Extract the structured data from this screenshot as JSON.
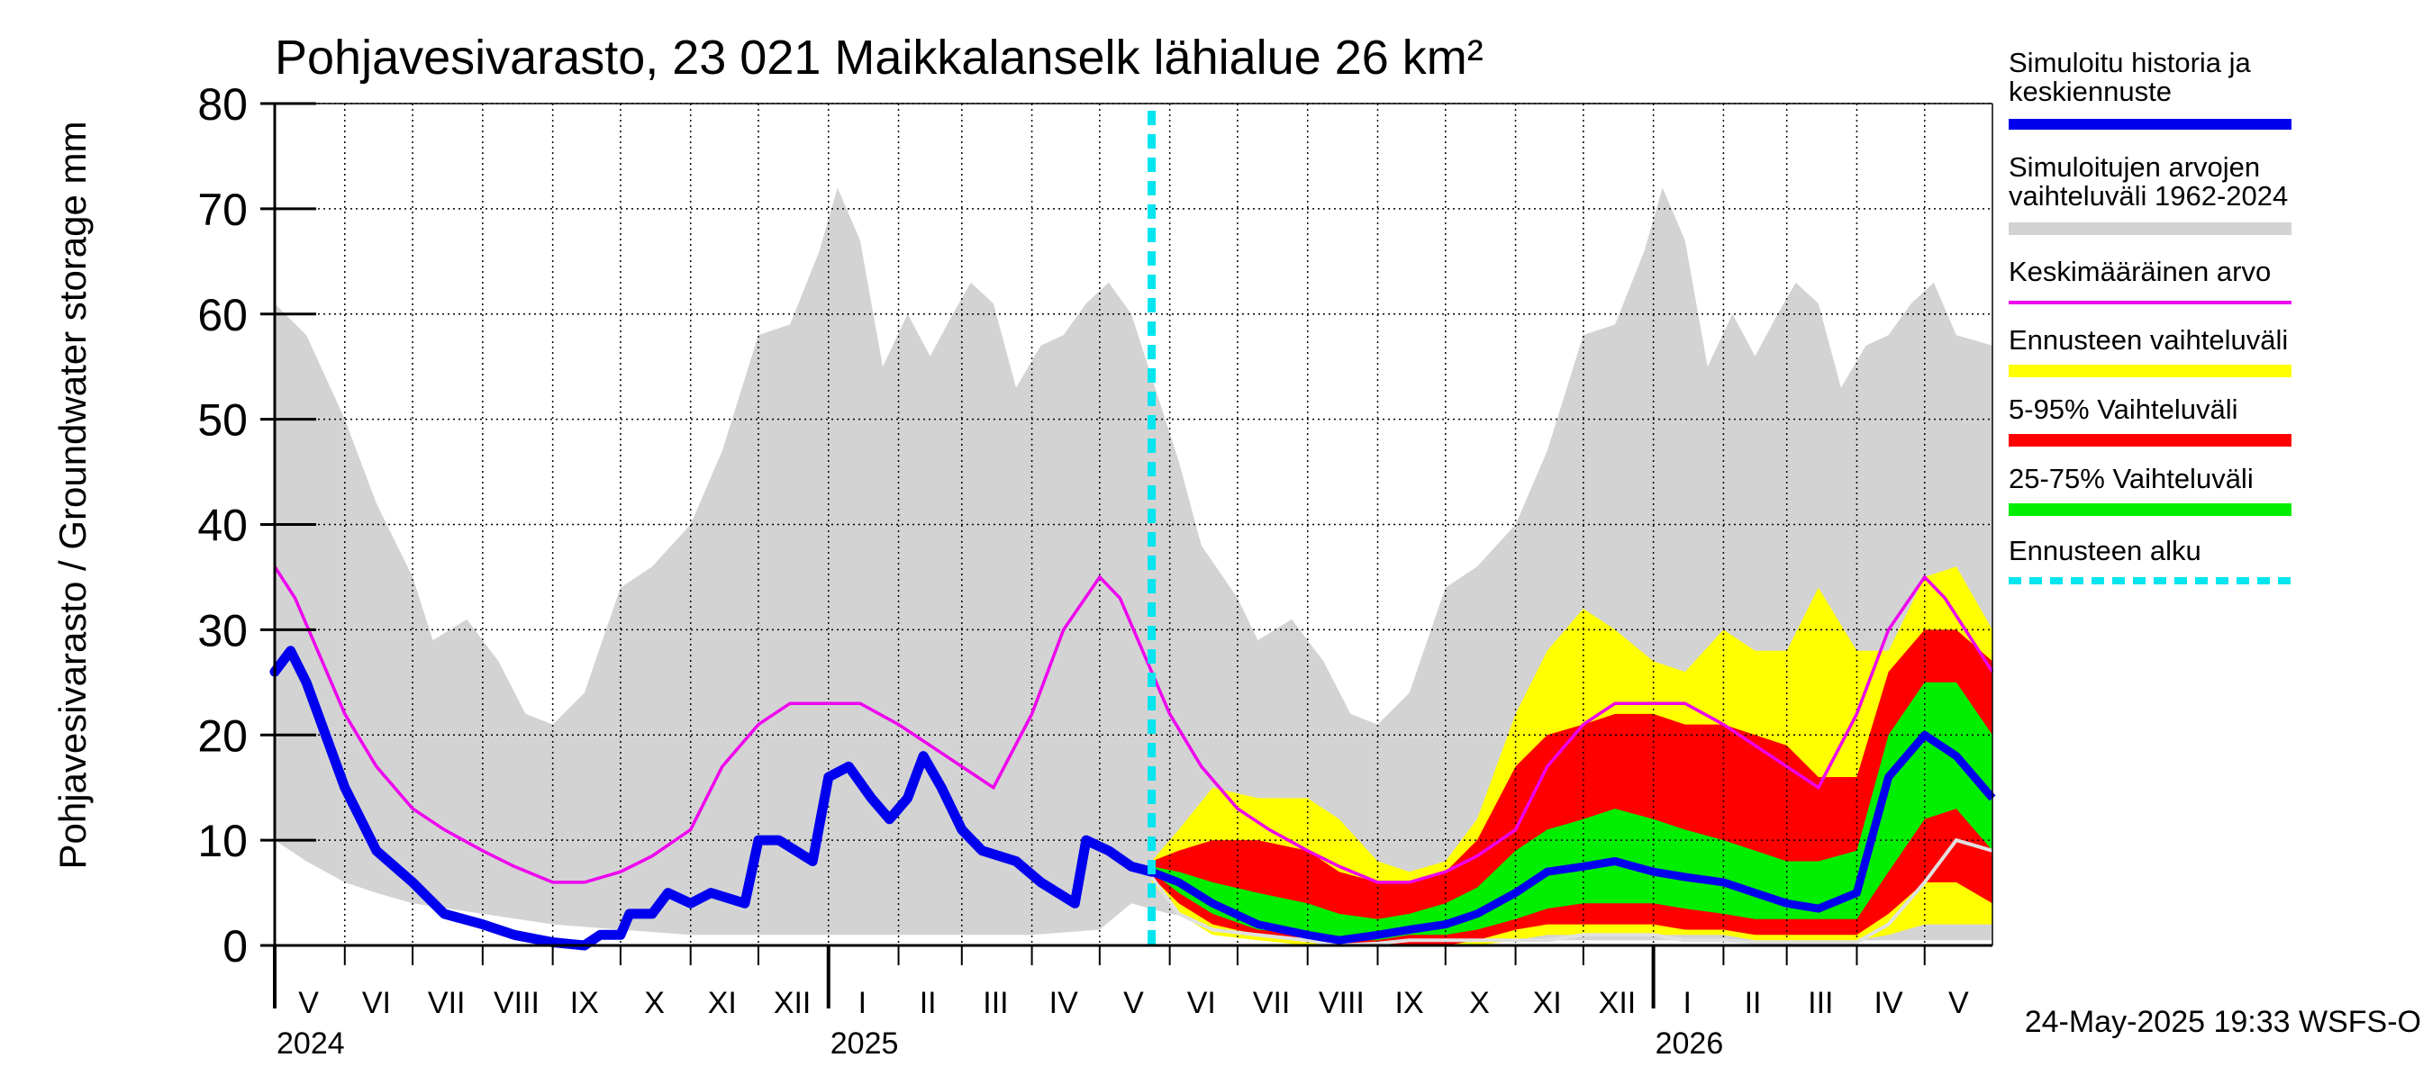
{
  "title": "Pohjavesivarasto, 23 021 Maikkalanselk lähialue 26 km²",
  "ylabel": "Pohjavesivarasto / Groundwater storage   mm",
  "footer": "24-May-2025 19:33 WSFS-O",
  "chart_data": {
    "type": "area",
    "x_unit": "date",
    "x_range": [
      "2024-05-01",
      "2026-05-31"
    ],
    "ylim": [
      0,
      80
    ],
    "y_ticks": [
      0,
      10,
      20,
      30,
      40,
      50,
      60,
      70,
      80
    ],
    "grid": true,
    "legend_position": "right",
    "month_labels": [
      {
        "label": "V",
        "date": "2024-05-16"
      },
      {
        "label": "VI",
        "date": "2024-06-15"
      },
      {
        "label": "VII",
        "date": "2024-07-16"
      },
      {
        "label": "VIII",
        "date": "2024-08-16"
      },
      {
        "label": "IX",
        "date": "2024-09-15"
      },
      {
        "label": "X",
        "date": "2024-10-16"
      },
      {
        "label": "XI",
        "date": "2024-11-15"
      },
      {
        "label": "XII",
        "date": "2024-12-16"
      },
      {
        "label": "I",
        "date": "2025-01-16"
      },
      {
        "label": "II",
        "date": "2025-02-14"
      },
      {
        "label": "III",
        "date": "2025-03-16"
      },
      {
        "label": "IV",
        "date": "2025-04-15"
      },
      {
        "label": "V",
        "date": "2025-05-16"
      },
      {
        "label": "VI",
        "date": "2025-06-15"
      },
      {
        "label": "VII",
        "date": "2025-07-16"
      },
      {
        "label": "VIII",
        "date": "2025-08-16"
      },
      {
        "label": "IX",
        "date": "2025-09-15"
      },
      {
        "label": "X",
        "date": "2025-10-16"
      },
      {
        "label": "XI",
        "date": "2025-11-15"
      },
      {
        "label": "XII",
        "date": "2025-12-16"
      },
      {
        "label": "I",
        "date": "2026-01-16"
      },
      {
        "label": "II",
        "date": "2026-02-14"
      },
      {
        "label": "III",
        "date": "2026-03-16"
      },
      {
        "label": "IV",
        "date": "2026-04-15"
      },
      {
        "label": "V",
        "date": "2026-05-16"
      }
    ],
    "month_boundaries": [
      "2024-05-01",
      "2024-06-01",
      "2024-07-01",
      "2024-08-01",
      "2024-09-01",
      "2024-10-01",
      "2024-11-01",
      "2024-12-01",
      "2025-01-01",
      "2025-02-01",
      "2025-03-01",
      "2025-04-01",
      "2025-05-01",
      "2025-06-01",
      "2025-07-01",
      "2025-08-01",
      "2025-09-01",
      "2025-10-01",
      "2025-11-01",
      "2025-12-01",
      "2026-01-01",
      "2026-02-01",
      "2026-03-01",
      "2026-04-01",
      "2026-05-01"
    ],
    "year_labels": [
      {
        "label": "2024",
        "date": "2024-05-01"
      },
      {
        "label": "2025",
        "date": "2025-01-01"
      },
      {
        "label": "2026",
        "date": "2026-01-01"
      }
    ],
    "forecast_start": "2025-05-24",
    "legend": [
      {
        "key": "history",
        "label_lines": [
          "Simuloitu historia ja",
          "keskiennuste"
        ],
        "color": "#0000ee",
        "style": "line"
      },
      {
        "key": "range",
        "label_lines": [
          "Simuloitujen arvojen",
          "vaihteluväli 1962-2024"
        ],
        "color": "#d3d3d3",
        "style": "band"
      },
      {
        "key": "mean",
        "label_lines": [
          "Keskimääräinen arvo"
        ],
        "color": "#ee00ee",
        "style": "thin"
      },
      {
        "key": "forecast_range",
        "label_lines": [
          "Ennusteen vaihteluväli"
        ],
        "color": "#ffff00",
        "style": "band"
      },
      {
        "key": "p5_95",
        "label_lines": [
          "5-95% Vaihteluväli"
        ],
        "color": "#ff0000",
        "style": "band"
      },
      {
        "key": "p25_75",
        "label_lines": [
          "25-75% Vaihteluväli"
        ],
        "color": "#00ee00",
        "style": "band"
      },
      {
        "key": "forecast_start",
        "label_lines": [
          "Ennusteen alku"
        ],
        "color": "#00e5ee",
        "style": "dashed"
      }
    ],
    "series": {
      "range_upper": [
        [
          "2024-05-01",
          61
        ],
        [
          "2024-05-15",
          58
        ],
        [
          "2024-06-01",
          50
        ],
        [
          "2024-06-15",
          42
        ],
        [
          "2024-07-01",
          35
        ],
        [
          "2024-07-10",
          29
        ],
        [
          "2024-07-25",
          31
        ],
        [
          "2024-08-08",
          27
        ],
        [
          "2024-08-20",
          22
        ],
        [
          "2024-09-01",
          21
        ],
        [
          "2024-09-15",
          24
        ],
        [
          "2024-10-01",
          34
        ],
        [
          "2024-10-15",
          36
        ],
        [
          "2024-11-01",
          40
        ],
        [
          "2024-11-15",
          47
        ],
        [
          "2024-12-01",
          58
        ],
        [
          "2024-12-15",
          59
        ],
        [
          "2024-12-28",
          66
        ],
        [
          "2025-01-05",
          72
        ],
        [
          "2025-01-15",
          67
        ],
        [
          "2025-01-25",
          55
        ],
        [
          "2025-02-05",
          60
        ],
        [
          "2025-02-15",
          56
        ],
        [
          "2025-02-25",
          60
        ],
        [
          "2025-03-05",
          63
        ],
        [
          "2025-03-15",
          61
        ],
        [
          "2025-03-25",
          53
        ],
        [
          "2025-04-05",
          57
        ],
        [
          "2025-04-15",
          58
        ],
        [
          "2025-04-25",
          61
        ],
        [
          "2025-05-05",
          63
        ],
        [
          "2025-05-15",
          60
        ],
        [
          "2025-05-24",
          54
        ],
        [
          "2025-06-05",
          46
        ],
        [
          "2025-06-15",
          38
        ],
        [
          "2025-07-01",
          33
        ],
        [
          "2025-07-10",
          29
        ],
        [
          "2025-07-25",
          31
        ],
        [
          "2025-08-08",
          27
        ],
        [
          "2025-08-20",
          22
        ],
        [
          "2025-09-01",
          21
        ],
        [
          "2025-09-15",
          24
        ],
        [
          "2025-10-01",
          34
        ],
        [
          "2025-10-15",
          36
        ],
        [
          "2025-11-01",
          40
        ],
        [
          "2025-11-15",
          47
        ],
        [
          "2025-12-01",
          58
        ],
        [
          "2025-12-15",
          59
        ],
        [
          "2025-12-28",
          66
        ],
        [
          "2026-01-05",
          72
        ],
        [
          "2026-01-15",
          67
        ],
        [
          "2026-01-25",
          55
        ],
        [
          "2026-02-05",
          60
        ],
        [
          "2026-02-15",
          56
        ],
        [
          "2026-02-25",
          60
        ],
        [
          "2026-03-05",
          63
        ],
        [
          "2026-03-15",
          61
        ],
        [
          "2026-03-25",
          53
        ],
        [
          "2026-04-05",
          57
        ],
        [
          "2026-04-15",
          58
        ],
        [
          "2026-04-25",
          61
        ],
        [
          "2026-05-05",
          63
        ],
        [
          "2026-05-15",
          58
        ],
        [
          "2026-05-31",
          57
        ]
      ],
      "range_lower": [
        [
          "2024-05-01",
          10
        ],
        [
          "2024-05-15",
          8
        ],
        [
          "2024-06-01",
          6
        ],
        [
          "2024-06-15",
          5
        ],
        [
          "2024-07-01",
          4
        ],
        [
          "2024-08-01",
          3
        ],
        [
          "2024-09-01",
          2
        ],
        [
          "2024-10-01",
          1.5
        ],
        [
          "2024-11-01",
          1
        ],
        [
          "2024-12-01",
          1
        ],
        [
          "2025-01-01",
          1
        ],
        [
          "2025-02-01",
          1
        ],
        [
          "2025-03-01",
          1
        ],
        [
          "2025-04-01",
          1
        ],
        [
          "2025-05-01",
          1.5
        ],
        [
          "2025-05-15",
          4
        ],
        [
          "2025-06-01",
          3
        ],
        [
          "2025-07-01",
          2
        ],
        [
          "2025-08-01",
          1.5
        ],
        [
          "2025-09-01",
          1
        ],
        [
          "2025-10-01",
          0.5
        ],
        [
          "2025-11-01",
          0.5
        ],
        [
          "2025-12-01",
          0.5
        ],
        [
          "2026-01-01",
          0.5
        ],
        [
          "2026-02-01",
          0.5
        ],
        [
          "2026-03-01",
          0.5
        ],
        [
          "2026-04-01",
          0.5
        ],
        [
          "2026-05-01",
          0.5
        ],
        [
          "2026-05-31",
          0.5
        ]
      ],
      "mean": [
        [
          "2024-05-01",
          36
        ],
        [
          "2024-05-10",
          33
        ],
        [
          "2024-06-01",
          22
        ],
        [
          "2024-06-15",
          17
        ],
        [
          "2024-07-01",
          13
        ],
        [
          "2024-07-15",
          11
        ],
        [
          "2024-08-01",
          9
        ],
        [
          "2024-08-15",
          7.5
        ],
        [
          "2024-09-01",
          6
        ],
        [
          "2024-09-15",
          6
        ],
        [
          "2024-10-01",
          7
        ],
        [
          "2024-10-15",
          8.5
        ],
        [
          "2024-11-01",
          11
        ],
        [
          "2024-11-15",
          17
        ],
        [
          "2024-12-01",
          21
        ],
        [
          "2024-12-15",
          23
        ],
        [
          "2025-01-01",
          23
        ],
        [
          "2025-01-15",
          23
        ],
        [
          "2025-02-01",
          21
        ],
        [
          "2025-02-15",
          19
        ],
        [
          "2025-03-01",
          17
        ],
        [
          "2025-03-15",
          15
        ],
        [
          "2025-04-01",
          22
        ],
        [
          "2025-04-15",
          30
        ],
        [
          "2025-05-01",
          35
        ],
        [
          "2025-05-10",
          33
        ],
        [
          "2025-06-01",
          22
        ],
        [
          "2025-06-15",
          17
        ],
        [
          "2025-07-01",
          13
        ],
        [
          "2025-07-15",
          11
        ],
        [
          "2025-08-01",
          9
        ],
        [
          "2025-08-15",
          7.5
        ],
        [
          "2025-09-01",
          6
        ],
        [
          "2025-09-15",
          6
        ],
        [
          "2025-10-01",
          7
        ],
        [
          "2025-10-15",
          8.5
        ],
        [
          "2025-11-01",
          11
        ],
        [
          "2025-11-15",
          17
        ],
        [
          "2025-12-01",
          21
        ],
        [
          "2025-12-15",
          23
        ],
        [
          "2026-01-01",
          23
        ],
        [
          "2026-01-15",
          23
        ],
        [
          "2026-02-01",
          21
        ],
        [
          "2026-02-15",
          19
        ],
        [
          "2026-03-01",
          17
        ],
        [
          "2026-03-15",
          15
        ],
        [
          "2026-04-01",
          22
        ],
        [
          "2026-04-15",
          30
        ],
        [
          "2026-05-01",
          35
        ],
        [
          "2026-05-10",
          33
        ],
        [
          "2026-05-31",
          26
        ]
      ],
      "history": [
        [
          "2024-05-01",
          26
        ],
        [
          "2024-05-08",
          28
        ],
        [
          "2024-05-15",
          25
        ],
        [
          "2024-06-01",
          15
        ],
        [
          "2024-06-15",
          9
        ],
        [
          "2024-07-01",
          6
        ],
        [
          "2024-07-15",
          3
        ],
        [
          "2024-08-01",
          2
        ],
        [
          "2024-08-15",
          1
        ],
        [
          "2024-09-01",
          0.3
        ],
        [
          "2024-09-15",
          0
        ],
        [
          "2024-09-22",
          1
        ],
        [
          "2024-10-01",
          1
        ],
        [
          "2024-10-05",
          3
        ],
        [
          "2024-10-15",
          3
        ],
        [
          "2024-10-22",
          5
        ],
        [
          "2024-11-01",
          4
        ],
        [
          "2024-11-10",
          5
        ],
        [
          "2024-11-25",
          4
        ],
        [
          "2024-12-01",
          10
        ],
        [
          "2024-12-10",
          10
        ],
        [
          "2024-12-25",
          8
        ],
        [
          "2025-01-01",
          16
        ],
        [
          "2025-01-10",
          17
        ],
        [
          "2025-01-20",
          14
        ],
        [
          "2025-01-28",
          12
        ],
        [
          "2025-02-05",
          14
        ],
        [
          "2025-02-12",
          18
        ],
        [
          "2025-02-20",
          15
        ],
        [
          "2025-03-01",
          11
        ],
        [
          "2025-03-10",
          9
        ],
        [
          "2025-03-25",
          8
        ],
        [
          "2025-04-05",
          6
        ],
        [
          "2025-04-20",
          4
        ],
        [
          "2025-04-25",
          10
        ],
        [
          "2025-05-05",
          9
        ],
        [
          "2025-05-15",
          7.5
        ],
        [
          "2025-05-24",
          7
        ]
      ],
      "forecast_mean": [
        [
          "2025-05-24",
          7
        ],
        [
          "2025-06-05",
          6
        ],
        [
          "2025-06-20",
          4
        ],
        [
          "2025-07-10",
          2
        ],
        [
          "2025-08-01",
          1
        ],
        [
          "2025-08-15",
          0.5
        ],
        [
          "2025-09-01",
          1
        ],
        [
          "2025-09-15",
          1.5
        ],
        [
          "2025-10-01",
          2
        ],
        [
          "2025-10-15",
          3
        ],
        [
          "2025-11-01",
          5
        ],
        [
          "2025-11-15",
          7
        ],
        [
          "2025-12-01",
          7.5
        ],
        [
          "2025-12-15",
          8
        ],
        [
          "2026-01-01",
          7
        ],
        [
          "2026-01-15",
          6.5
        ],
        [
          "2026-02-01",
          6
        ],
        [
          "2026-02-15",
          5
        ],
        [
          "2026-03-01",
          4
        ],
        [
          "2026-03-15",
          3.5
        ],
        [
          "2026-04-01",
          5
        ],
        [
          "2026-04-15",
          16
        ],
        [
          "2026-05-01",
          20
        ],
        [
          "2026-05-15",
          18
        ],
        [
          "2026-05-31",
          14
        ]
      ],
      "forecast_band_x": [
        "2025-05-24",
        "2025-06-05",
        "2025-06-20",
        "2025-07-10",
        "2025-08-01",
        "2025-08-15",
        "2025-09-01",
        "2025-09-15",
        "2025-10-01",
        "2025-10-15",
        "2025-11-01",
        "2025-11-15",
        "2025-12-01",
        "2025-12-15",
        "2026-01-01",
        "2026-01-15",
        "2026-02-01",
        "2026-02-15",
        "2026-03-01",
        "2026-03-15",
        "2026-04-01",
        "2026-04-15",
        "2026-05-01",
        "2026-05-15",
        "2026-05-31"
      ],
      "forecast_max": [
        8,
        11,
        15,
        14,
        14,
        12,
        8,
        7,
        8,
        12,
        22,
        28,
        32,
        30,
        27,
        26,
        30,
        28,
        28,
        34,
        28,
        28,
        35,
        36,
        30
      ],
      "p95": [
        8,
        9,
        10,
        10,
        9,
        7,
        6,
        6,
        7,
        10,
        17,
        20,
        21,
        22,
        22,
        21,
        21,
        20,
        19,
        16,
        16,
        26,
        30,
        30,
        27
      ],
      "p75": [
        7.5,
        7,
        6,
        5,
        4,
        3,
        2.5,
        3,
        4,
        5.5,
        9,
        11,
        12,
        13,
        12,
        11,
        10,
        9,
        8,
        8,
        9,
        20,
        25,
        25,
        20
      ],
      "p25": [
        7,
        5,
        3,
        1.5,
        1,
        0.5,
        0.5,
        1,
        1,
        1.5,
        2.5,
        3.5,
        4,
        4,
        4,
        3.5,
        3,
        2.5,
        2.5,
        2.5,
        2.5,
        7,
        12,
        13,
        9
      ],
      "p5": [
        6.5,
        4,
        2,
        1,
        0.5,
        0,
        0,
        0,
        0,
        0.5,
        1.5,
        2,
        2,
        2,
        2,
        1.5,
        1.5,
        1,
        1,
        1,
        1,
        3,
        6,
        6,
        4
      ],
      "forecast_min": [
        6,
        3,
        1,
        0.5,
        0,
        0,
        0,
        0,
        0,
        0,
        0.5,
        1,
        1,
        1,
        1,
        1,
        1,
        0.5,
        0.5,
        0.5,
        0.5,
        1,
        2,
        2,
        2
      ],
      "forecast_low_line": [
        6.5,
        3,
        1.5,
        1,
        0.5,
        0,
        0.2,
        0.5,
        0.5,
        0.5,
        0.5,
        0.5,
        1,
        1,
        1,
        0.5,
        0.5,
        0.3,
        0.3,
        0.3,
        0.3,
        2,
        6,
        10,
        9
      ]
    }
  }
}
